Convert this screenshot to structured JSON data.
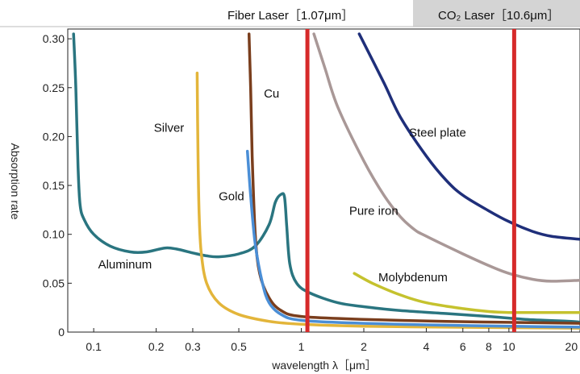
{
  "header": {
    "fiber_label": "Fiber Laser［1.07μm］",
    "co2_label": "CO₂ Laser［10.6μm］"
  },
  "chart_data": {
    "type": "line",
    "xlabel": "wavelength λ［μm］",
    "ylabel": "Absorption rate",
    "xscale": "log",
    "xlim": [
      0.075,
      22
    ],
    "ylim": [
      0,
      0.31
    ],
    "x_ticks": [
      {
        "v": 0.1,
        "label": "0.1"
      },
      {
        "v": 0.2,
        "label": "0.2"
      },
      {
        "v": 0.3,
        "label": "0.3"
      },
      {
        "v": 0.5,
        "label": "0.5"
      },
      {
        "v": 1,
        "label": "1"
      },
      {
        "v": 2,
        "label": "2"
      },
      {
        "v": 4,
        "label": "4"
      },
      {
        "v": 6,
        "label": "6"
      },
      {
        "v": 8,
        "label": "8"
      },
      {
        "v": 10,
        "label": "10"
      },
      {
        "v": 20,
        "label": "20"
      }
    ],
    "y_ticks": [
      {
        "v": 0,
        "label": "0"
      },
      {
        "v": 0.05,
        "label": "0.05"
      },
      {
        "v": 0.1,
        "label": "0.10"
      },
      {
        "v": 0.15,
        "label": "0.15"
      },
      {
        "v": 0.2,
        "label": "0.20"
      },
      {
        "v": 0.25,
        "label": "0.25"
      },
      {
        "v": 0.3,
        "label": "0.30"
      }
    ],
    "laser_lines": [
      {
        "x": 1.07,
        "color": "#d62a2a"
      },
      {
        "x": 10.6,
        "color": "#d62a2a"
      }
    ],
    "series": [
      {
        "name": "Aluminum",
        "color": "#2a7580",
        "label_pos": [
          0.105,
          0.065
        ],
        "points": [
          [
            0.08,
            0.305
          ],
          [
            0.082,
            0.25
          ],
          [
            0.084,
            0.17
          ],
          [
            0.086,
            0.13
          ],
          [
            0.09,
            0.115
          ],
          [
            0.1,
            0.1
          ],
          [
            0.12,
            0.088
          ],
          [
            0.15,
            0.082
          ],
          [
            0.18,
            0.082
          ],
          [
            0.22,
            0.086
          ],
          [
            0.25,
            0.085
          ],
          [
            0.3,
            0.081
          ],
          [
            0.35,
            0.078
          ],
          [
            0.4,
            0.077
          ],
          [
            0.5,
            0.08
          ],
          [
            0.6,
            0.088
          ],
          [
            0.7,
            0.11
          ],
          [
            0.75,
            0.133
          ],
          [
            0.8,
            0.141
          ],
          [
            0.83,
            0.138
          ],
          [
            0.85,
            0.11
          ],
          [
            0.88,
            0.07
          ],
          [
            0.95,
            0.05
          ],
          [
            1.1,
            0.04
          ],
          [
            1.5,
            0.03
          ],
          [
            2,
            0.026
          ],
          [
            3,
            0.022
          ],
          [
            5,
            0.019
          ],
          [
            8,
            0.016
          ],
          [
            12,
            0.013
          ],
          [
            20,
            0.011
          ],
          [
            22,
            0.01
          ]
        ]
      },
      {
        "name": "Silver",
        "color": "#e3b53a",
        "label_pos": [
          0.195,
          0.205
        ],
        "points": [
          [
            0.315,
            0.265
          ],
          [
            0.318,
            0.18
          ],
          [
            0.322,
            0.12
          ],
          [
            0.33,
            0.08
          ],
          [
            0.35,
            0.05
          ],
          [
            0.4,
            0.03
          ],
          [
            0.5,
            0.018
          ],
          [
            0.7,
            0.011
          ],
          [
            1,
            0.008
          ],
          [
            2,
            0.006
          ],
          [
            5,
            0.005
          ],
          [
            10,
            0.0045
          ],
          [
            22,
            0.004
          ]
        ]
      },
      {
        "name": "Cu",
        "color": "#7a3e1d",
        "label_pos": [
          0.66,
          0.24
        ],
        "points": [
          [
            0.56,
            0.305
          ],
          [
            0.57,
            0.25
          ],
          [
            0.58,
            0.18
          ],
          [
            0.6,
            0.1
          ],
          [
            0.63,
            0.06
          ],
          [
            0.7,
            0.035
          ],
          [
            0.8,
            0.022
          ],
          [
            1,
            0.016
          ],
          [
            2,
            0.013
          ],
          [
            5,
            0.011
          ],
          [
            10,
            0.01
          ],
          [
            22,
            0.009
          ]
        ]
      },
      {
        "name": "Gold",
        "color": "#4a8ed6",
        "label_pos": [
          0.4,
          0.135
        ],
        "points": [
          [
            0.55,
            0.185
          ],
          [
            0.57,
            0.14
          ],
          [
            0.6,
            0.09
          ],
          [
            0.65,
            0.05
          ],
          [
            0.7,
            0.03
          ],
          [
            0.8,
            0.018
          ],
          [
            1,
            0.012
          ],
          [
            2,
            0.009
          ],
          [
            5,
            0.007
          ],
          [
            10,
            0.006
          ],
          [
            22,
            0.005
          ]
        ]
      },
      {
        "name": "Steel plate",
        "color": "#1f2f7a",
        "label_pos": [
          3.3,
          0.2
        ],
        "points": [
          [
            1.9,
            0.305
          ],
          [
            2.5,
            0.255
          ],
          [
            3,
            0.22
          ],
          [
            4,
            0.18
          ],
          [
            5,
            0.155
          ],
          [
            6,
            0.14
          ],
          [
            8,
            0.124
          ],
          [
            10,
            0.113
          ],
          [
            13,
            0.103
          ],
          [
            16,
            0.098
          ],
          [
            22,
            0.095
          ]
        ]
      },
      {
        "name": "Pure iron",
        "color": "#a99897",
        "label_pos": [
          1.7,
          0.12
        ],
        "points": [
          [
            1.15,
            0.305
          ],
          [
            1.3,
            0.27
          ],
          [
            1.5,
            0.23
          ],
          [
            2,
            0.175
          ],
          [
            2.5,
            0.14
          ],
          [
            3,
            0.118
          ],
          [
            3.5,
            0.105
          ],
          [
            4,
            0.098
          ],
          [
            6,
            0.08
          ],
          [
            8,
            0.068
          ],
          [
            10,
            0.06
          ],
          [
            13,
            0.054
          ],
          [
            16,
            0.052
          ],
          [
            22,
            0.053
          ]
        ]
      },
      {
        "name": "Molybdenum",
        "color": "#c5c22e",
        "label_pos": [
          2.35,
          0.052
        ],
        "points": [
          [
            1.8,
            0.06
          ],
          [
            2.2,
            0.05
          ],
          [
            3,
            0.038
          ],
          [
            4,
            0.03
          ],
          [
            6,
            0.024
          ],
          [
            8,
            0.021
          ],
          [
            10,
            0.02
          ],
          [
            15,
            0.02
          ],
          [
            22,
            0.02
          ]
        ]
      }
    ]
  }
}
